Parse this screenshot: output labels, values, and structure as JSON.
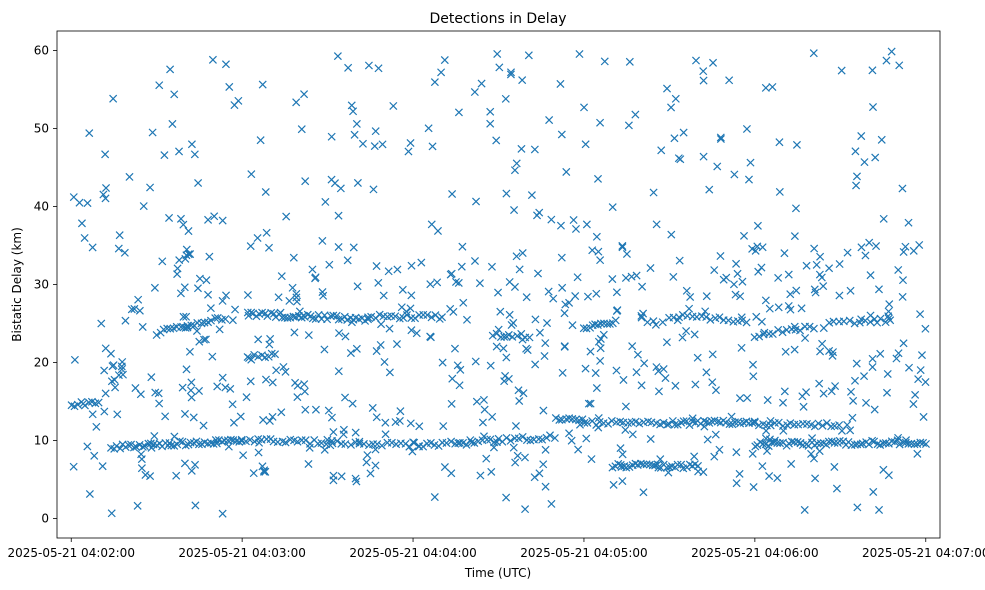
{
  "chart_data": {
    "type": "scatter",
    "title": "Detections in Delay",
    "xlabel": "Time (UTC)",
    "ylabel": "Bistatic Delay (km)",
    "marker": "x",
    "color": "#1f77b4",
    "x_unit": "seconds after 2025-05-21 04:02:00",
    "xlim": [
      -5,
      305
    ],
    "ylim": [
      -2.5,
      62.5
    ],
    "x_ticks": [
      {
        "value": 0,
        "label": "2025-05-21 04:02:00"
      },
      {
        "value": 60,
        "label": "2025-05-21 04:03:00"
      },
      {
        "value": 120,
        "label": "2025-05-21 04:04:00"
      },
      {
        "value": 180,
        "label": "2025-05-21 04:05:00"
      },
      {
        "value": 240,
        "label": "2025-05-21 04:06:00"
      },
      {
        "value": 300,
        "label": "2025-05-21 04:07:00"
      }
    ],
    "y_ticks": [
      {
        "value": 0,
        "label": "0"
      },
      {
        "value": 10,
        "label": "10"
      },
      {
        "value": 20,
        "label": "20"
      },
      {
        "value": 30,
        "label": "30"
      },
      {
        "value": 40,
        "label": "40"
      },
      {
        "value": 50,
        "label": "50"
      },
      {
        "value": 60,
        "label": "60"
      }
    ],
    "series": [
      {
        "name": "detections",
        "tracks": [
          {
            "x_start": 0,
            "x_end": 10,
            "y_start": 14.6,
            "y_end": 15.0,
            "step": 1.2
          },
          {
            "x_start": 14,
            "x_end": 60,
            "y_start": 9.2,
            "y_end": 10.0,
            "step": 1.0
          },
          {
            "x_start": 60,
            "x_end": 90,
            "y_start": 10.0,
            "y_end": 9.8,
            "step": 1.4
          },
          {
            "x_start": 90,
            "x_end": 122,
            "y_start": 9.8,
            "y_end": 9.4,
            "step": 1.6
          },
          {
            "x_start": 122,
            "x_end": 170,
            "y_start": 9.3,
            "y_end": 10.5,
            "step": 1.4
          },
          {
            "x_start": 170,
            "x_end": 180,
            "y_start": 12.8,
            "y_end": 12.6,
            "step": 1.2
          },
          {
            "x_start": 180,
            "x_end": 210,
            "y_start": 12.3,
            "y_end": 12.2,
            "step": 1.4
          },
          {
            "x_start": 190,
            "x_end": 220,
            "y_start": 6.8,
            "y_end": 6.7,
            "step": 1.0
          },
          {
            "x_start": 210,
            "x_end": 240,
            "y_start": 12.2,
            "y_end": 12.4,
            "step": 1.0
          },
          {
            "x_start": 240,
            "x_end": 300,
            "y_start": 9.5,
            "y_end": 9.8,
            "step": 1.0
          },
          {
            "x_start": 240,
            "x_end": 270,
            "y_start": 12.2,
            "y_end": 12.0,
            "step": 1.4
          },
          {
            "x_start": 30,
            "x_end": 55,
            "y_start": 23.8,
            "y_end": 25.8,
            "step": 1.2
          },
          {
            "x_start": 62,
            "x_end": 104,
            "y_start": 26.2,
            "y_end": 25.6,
            "step": 1.0
          },
          {
            "x_start": 104,
            "x_end": 130,
            "y_start": 26.0,
            "y_end": 25.8,
            "step": 1.4
          },
          {
            "x_start": 62,
            "x_end": 72,
            "y_start": 20.6,
            "y_end": 21.0,
            "step": 1.2
          },
          {
            "x_start": 148,
            "x_end": 160,
            "y_start": 23.6,
            "y_end": 23.4,
            "step": 1.4
          },
          {
            "x_start": 180,
            "x_end": 190,
            "y_start": 24.6,
            "y_end": 25.2,
            "step": 1.0
          },
          {
            "x_start": 210,
            "x_end": 238,
            "y_start": 26.0,
            "y_end": 25.4,
            "step": 1.6
          },
          {
            "x_start": 240,
            "x_end": 260,
            "y_start": 23.4,
            "y_end": 24.6,
            "step": 1.6
          },
          {
            "x_start": 266,
            "x_end": 288,
            "y_start": 25.0,
            "y_end": 25.4,
            "step": 1.8
          }
        ],
        "scatter_count": 760,
        "scatter_seed": 20250521,
        "scatter_y_range": [
          0.5,
          60
        ],
        "scatter_x_range": [
          0,
          300
        ]
      }
    ]
  }
}
